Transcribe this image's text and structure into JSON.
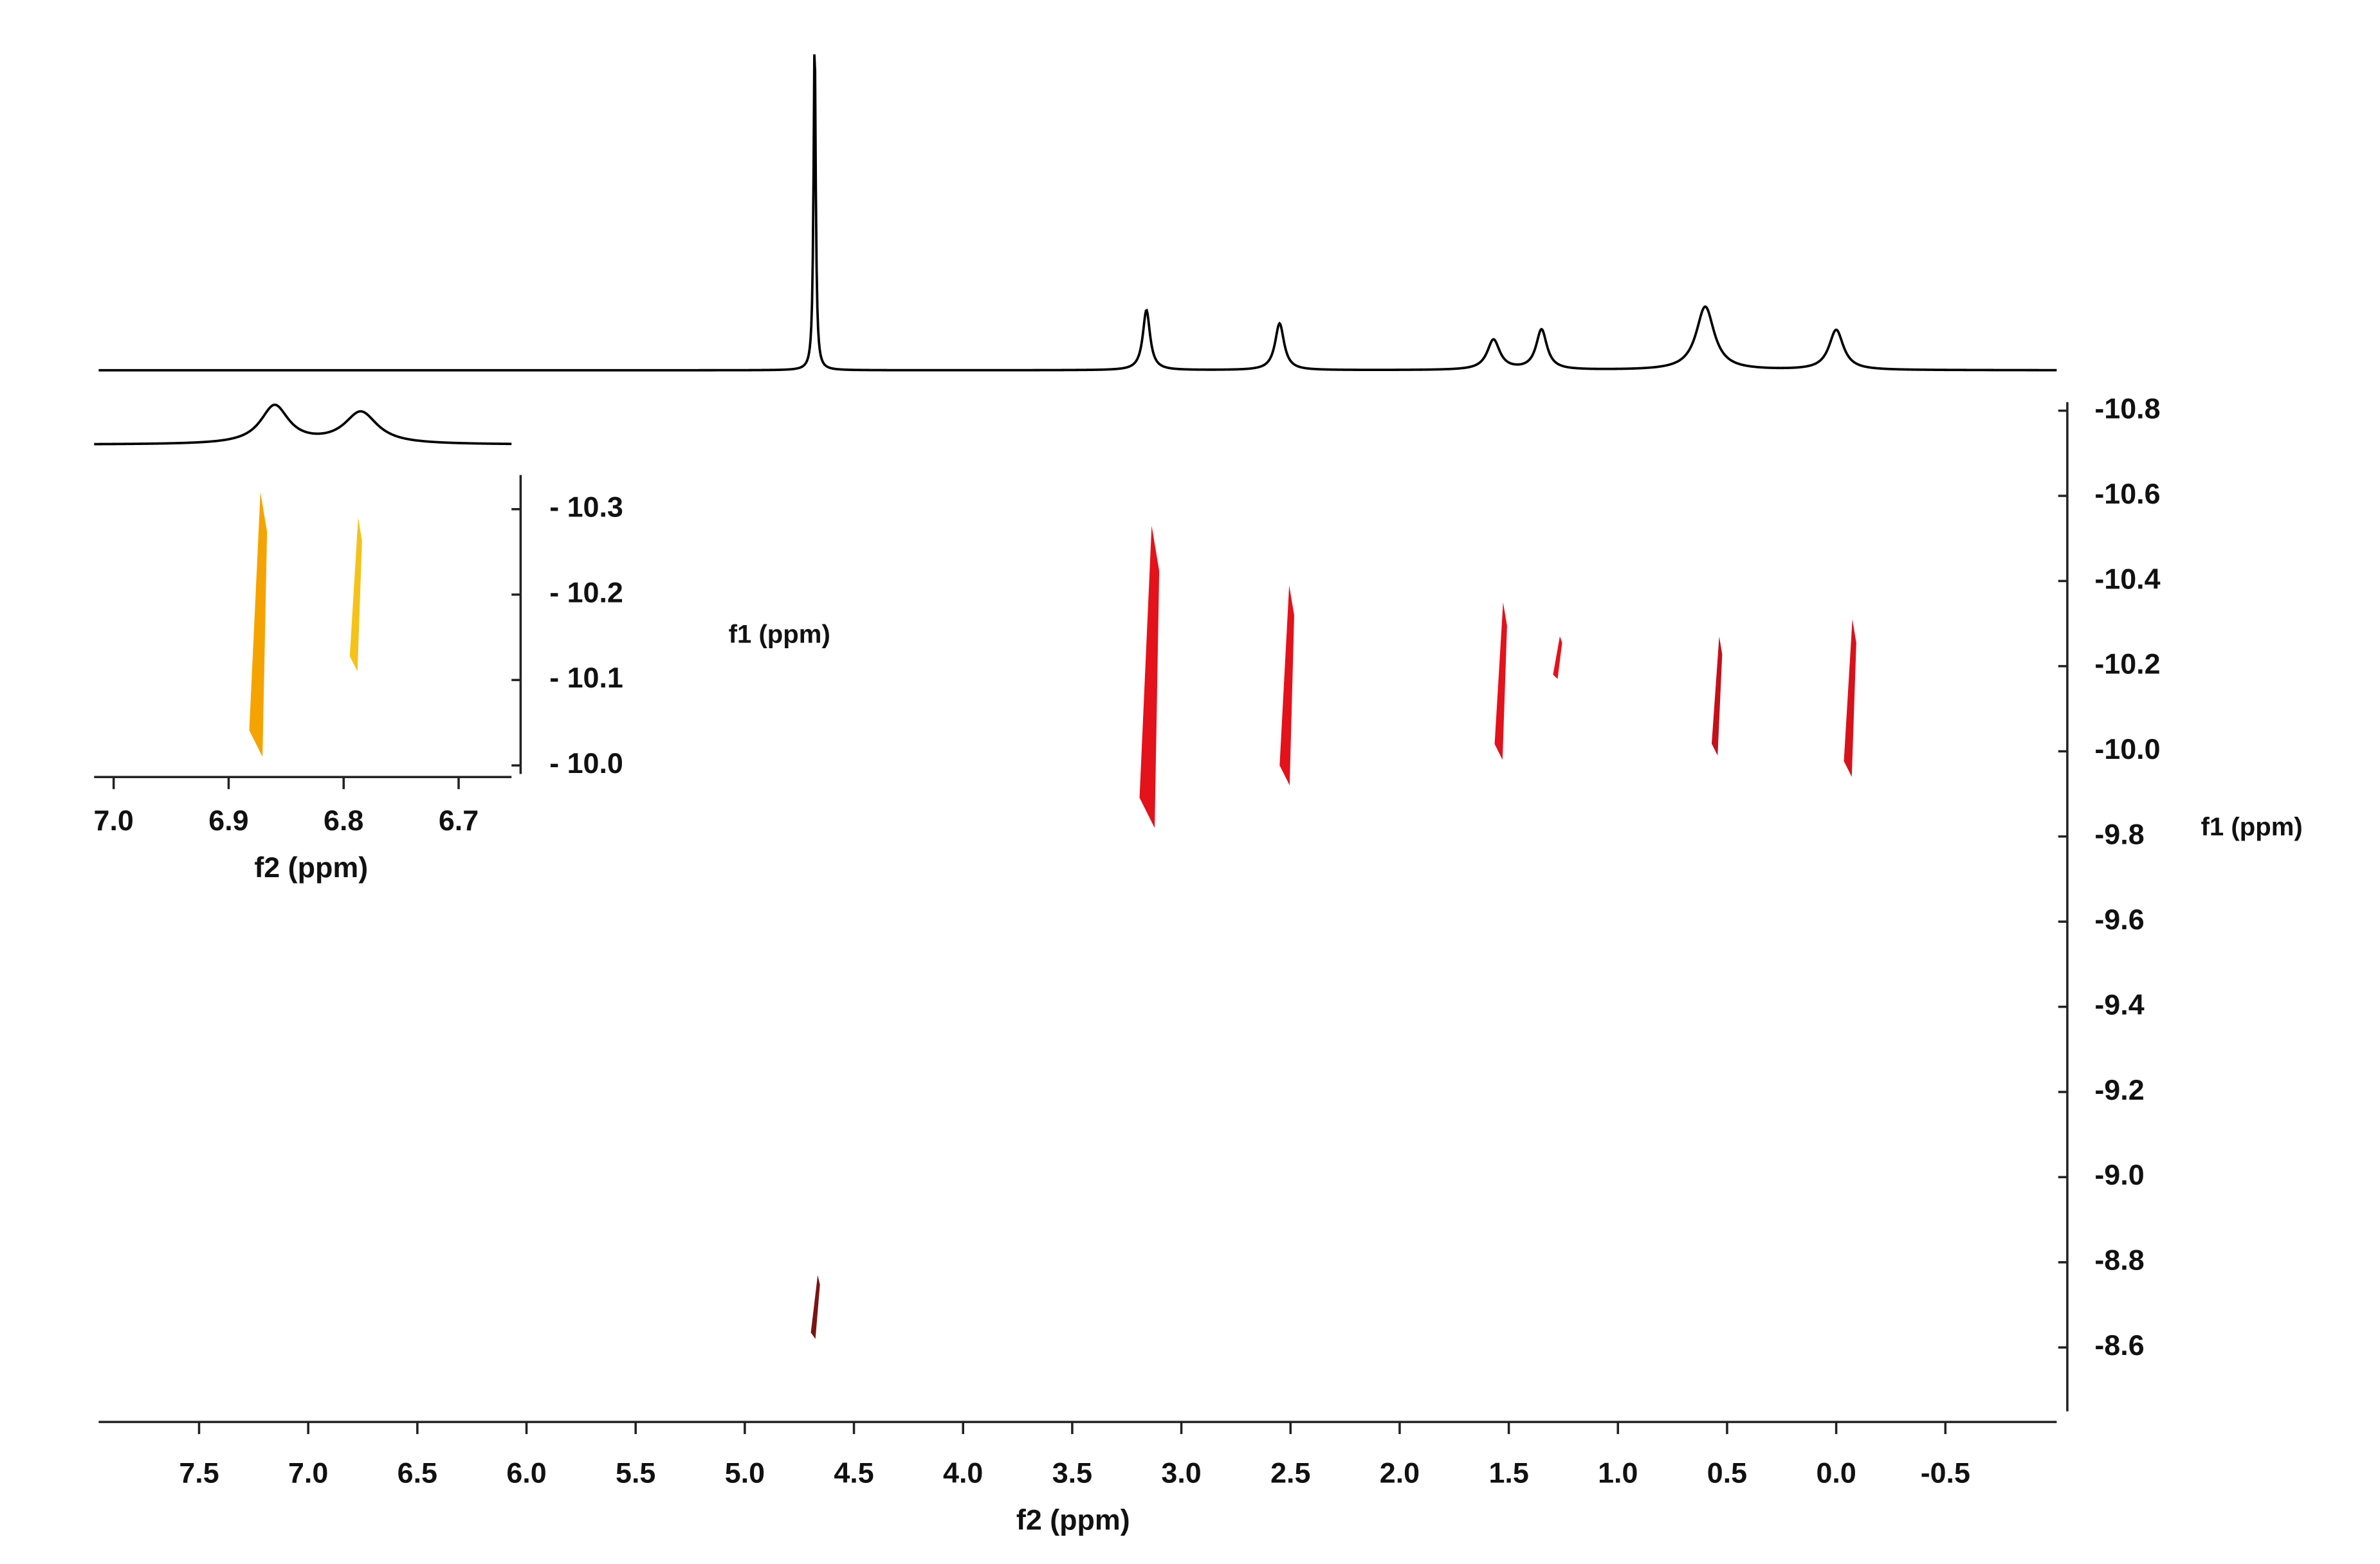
{
  "chart_data": [
    {
      "type": "dosy",
      "x_label": "f2 (ppm)",
      "y_label": "f1 (ppm)",
      "xlim": [
        7.96,
        -1.01
      ],
      "ylim": [
        -8.45,
        -10.82
      ],
      "xticks": [
        7.5,
        {
          "value": 7,
          "label": "7.0"
        },
        6.5,
        {
          "value": 6,
          "label": "6.0"
        },
        5.5,
        {
          "value": 5,
          "label": "5.0"
        },
        4.5,
        {
          "value": 4,
          "label": "4.0"
        },
        3.5,
        {
          "value": 3,
          "label": "3.0"
        },
        2.5,
        {
          "value": 2,
          "label": "2.0"
        },
        1.5,
        {
          "value": 1,
          "label": "1.0"
        },
        0.5,
        {
          "value": 0,
          "label": "0.0"
        },
        -0.5
      ],
      "yticks": [
        -10.8,
        -10.6,
        -10.4,
        -10.2,
        {
          "value": -10,
          "label": "-10.0"
        },
        -9.8,
        -9.6,
        -9.4,
        -9.2,
        {
          "value": -9,
          "label": "-9.0"
        },
        -8.8,
        -8.6
      ],
      "peaks": [
        {
          "x": 3.15,
          "y": [
            -10.53,
            -9.82
          ],
          "color": "#e3121b"
        },
        {
          "x": 2.52,
          "y": [
            -10.39,
            -9.92
          ],
          "color": "#e3121b"
        },
        {
          "x": 1.54,
          "y": [
            -10.35,
            -9.98
          ],
          "color": "#e3121b"
        },
        {
          "x": 1.28,
          "y": [
            -10.27,
            -10.17
          ],
          "color": "#e3121b"
        },
        {
          "x": 0.55,
          "y": [
            -10.27,
            -9.99
          ],
          "color": "#c4101a"
        },
        {
          "x": -0.06,
          "y": [
            -10.31,
            -9.94
          ],
          "color": "#d8121b"
        },
        {
          "x": 4.68,
          "y": [
            -8.77,
            -8.62
          ],
          "color": "#7a1414"
        }
      ],
      "projection": {
        "color": "#000000",
        "peaks": [
          {
            "x": 4.68,
            "height": 1.0,
            "width": 0.012
          },
          {
            "x": 3.16,
            "height": 0.18,
            "width": 0.04
          },
          {
            "x": 2.55,
            "height": 0.14,
            "width": 0.05
          },
          {
            "x": 1.57,
            "height": 0.09,
            "width": 0.07
          },
          {
            "x": 1.35,
            "height": 0.12,
            "width": 0.06
          },
          {
            "x": 0.6,
            "height": 0.19,
            "width": 0.1
          },
          {
            "x": 0.0,
            "height": 0.12,
            "width": 0.08
          }
        ]
      }
    },
    {
      "type": "dosy",
      "x_label": "f2 (ppm)",
      "y_label": "f1 (ppm)",
      "xlim": [
        7.017,
        6.654
      ],
      "ylim": [
        -9.99,
        -10.34
      ],
      "xticks": [
        {
          "value": 7,
          "label": "7.0"
        },
        6.9,
        6.8,
        6.7
      ],
      "yticks": [
        {
          "value": -10.3,
          "label": "- 10.3"
        },
        {
          "value": -10.2,
          "label": "- 10.2"
        },
        {
          "value": -10.1,
          "label": "- 10.1"
        },
        {
          "value": -10,
          "label": "- 10.0"
        }
      ],
      "peaks": [
        {
          "x": 6.875,
          "y": [
            -10.32,
            -10.01
          ],
          "color": "#f5a300"
        },
        {
          "x": 6.79,
          "y": [
            -10.29,
            -10.11
          ],
          "color": "#f5c21a"
        }
      ],
      "projection": {
        "color": "#000000",
        "peaks": [
          {
            "x": 6.86,
            "height": 0.9,
            "width": 0.03
          },
          {
            "x": 6.785,
            "height": 0.75,
            "width": 0.035
          }
        ]
      }
    }
  ]
}
